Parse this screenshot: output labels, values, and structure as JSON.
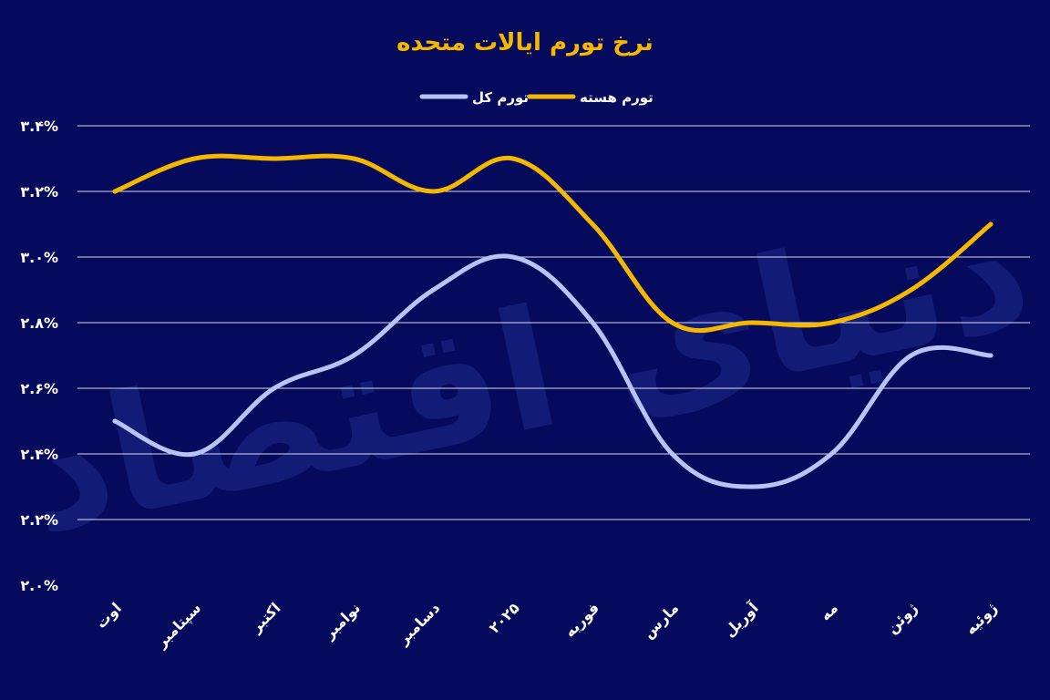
{
  "colors": {
    "background": "#060a5c",
    "title": "#f5b800",
    "core": "#f5b800",
    "headline": "#b7c4f4",
    "grid": "#ffffff"
  },
  "watermark": "دنیای اقتصاد",
  "chart_data": {
    "type": "line",
    "title": "نرخ تورم ایالات متحده",
    "categories": [
      "اوت",
      "سپتامبر",
      "اکتبر",
      "نوامبر",
      "دسامبر",
      "۲۰۲۵",
      "فوریه",
      "مارس",
      "آوریل",
      "مه",
      "ژوئن",
      "ژوئیه"
    ],
    "series": [
      {
        "name": "تورم کل",
        "color": "#b7c4f4",
        "values": [
          2.5,
          2.4,
          2.6,
          2.7,
          2.9,
          3.0,
          2.8,
          2.4,
          2.3,
          2.4,
          2.7,
          2.7
        ]
      },
      {
        "name": "تورم هسته",
        "color": "#f5b800",
        "values": [
          3.2,
          3.3,
          3.3,
          3.3,
          3.2,
          3.3,
          3.1,
          2.8,
          2.8,
          2.8,
          2.9,
          3.1
        ]
      }
    ],
    "ylim": [
      2.0,
      3.4
    ],
    "yticks": [
      3.4,
      3.2,
      3.0,
      2.8,
      2.6,
      2.4,
      2.2,
      2.0
    ],
    "ytick_labels": [
      "۳.۴%",
      "۳.۲%",
      "۳.۰%",
      "۲.۸%",
      "۲.۶%",
      "۲.۴%",
      "۲.۲%",
      "۲.۰%"
    ],
    "grid": true,
    "legend_position": "top-center"
  }
}
